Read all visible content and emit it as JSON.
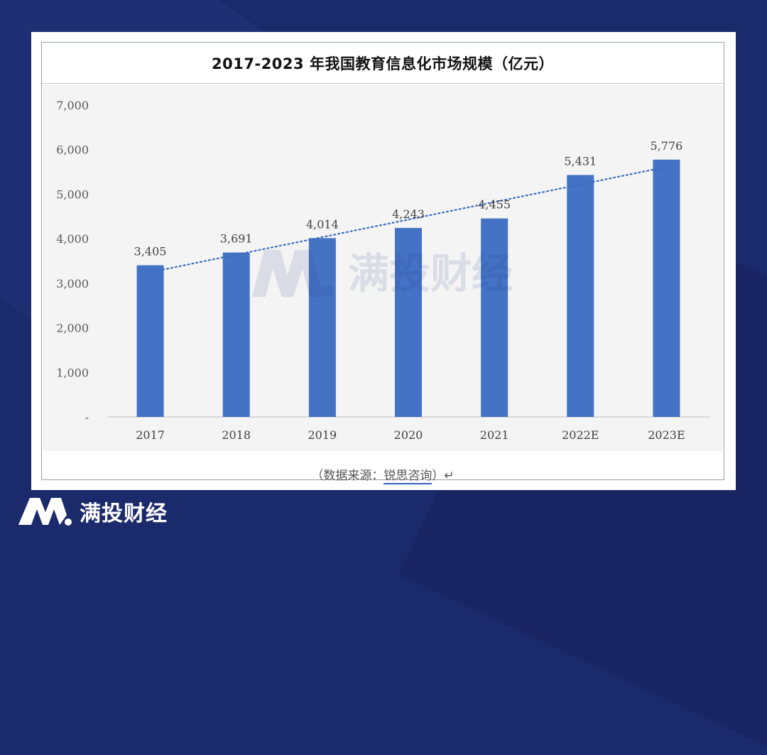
{
  "brand": {
    "name": "满投财经"
  },
  "chart_data": {
    "type": "bar",
    "title": "2017-2023 年我国教育信息化市场规模（亿元）",
    "categories": [
      "2017",
      "2018",
      "2019",
      "2020",
      "2021",
      "2022E",
      "2023E"
    ],
    "values": [
      3405,
      3691,
      4014,
      4243,
      4455,
      5431,
      5776
    ],
    "value_labels": [
      "3,405",
      "3,691",
      "4,014",
      "4,243",
      "4,455",
      "5,431",
      "5,776"
    ],
    "ylim": [
      0,
      7000
    ],
    "yticks": [
      0,
      1000,
      2000,
      3000,
      4000,
      5000,
      6000,
      7000
    ],
    "ytick_labels": [
      "-",
      "1,000",
      "2,000",
      "3,000",
      "4,000",
      "5,000",
      "6,000",
      "7,000"
    ],
    "trendline": "linear-dotted",
    "bar_color": "#4472c4",
    "grid": false
  },
  "source_note": {
    "open": "（数据来源：",
    "name": "锐思咨询",
    "close": "）↵"
  }
}
